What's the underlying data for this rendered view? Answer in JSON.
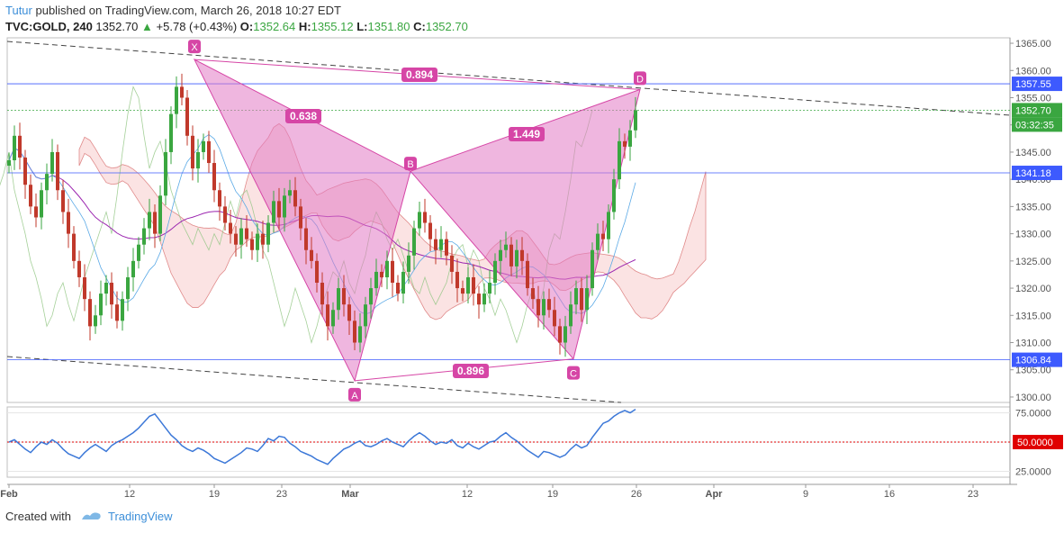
{
  "header": {
    "author": "Tutur",
    "published_text": "published on TradingView.com, March 26, 2018 10:27 EDT",
    "symbol": "TVC:GOLD, 240",
    "last": "1352.70",
    "change_arrow": "▲",
    "change": "+5.78 (+0.43%)",
    "o_label": "O:",
    "o_value": "1352.64",
    "h_label": "H:",
    "h_value": "1355.12",
    "l_label": "L:",
    "l_value": "1351.80",
    "c_label": "C:",
    "c_value": "1352.70"
  },
  "footer": {
    "created_with": "Created with",
    "brand": "TradingView"
  },
  "colors": {
    "up": "#3aa640",
    "down": "#c0392b",
    "pattern": "#d646a6",
    "pattern_fill": "#e27ac4",
    "hline": "#3d5afe",
    "rsi_line": "#3c78d8",
    "rsi_mid": "#e00000",
    "cloud_green": "#cfe8c5",
    "cloud_red": "#f7cccc",
    "last_price": "#3aa640"
  },
  "chart_data": [
    {
      "type": "candlestick",
      "title": "TVC:GOLD, 240",
      "ylim": [
        1299,
        1366
      ],
      "y_ticks": [
        1300,
        1305,
        1310,
        1315,
        1320,
        1325,
        1330,
        1335,
        1340,
        1345,
        1350,
        1355,
        1360,
        1365
      ],
      "x_tick_labels": [
        "Feb",
        "12",
        "19",
        "23",
        "Mar",
        "12",
        "19",
        "26",
        "Apr",
        "9",
        "16",
        "23"
      ],
      "price_tags": [
        {
          "label": "1357.55",
          "value": 1357.55
        },
        {
          "label": "1352.70",
          "value": 1352.7
        },
        {
          "label": "03:32:35",
          "value": 1350.3
        },
        {
          "label": "1341.18",
          "value": 1341.18
        },
        {
          "label": "1306.84",
          "value": 1306.84
        }
      ],
      "harmonic_pattern": {
        "points": [
          {
            "label": "X",
            "date": "Feb 16",
            "price": 1362.0
          },
          {
            "label": "A",
            "date": "Mar 01",
            "price": 1303.0
          },
          {
            "label": "B",
            "date": "Mar 08",
            "price": 1341.5
          },
          {
            "label": "C",
            "date": "Mar 20",
            "price": 1307.0
          },
          {
            "label": "D",
            "date": "Mar 26",
            "price": 1356.5
          }
        ],
        "ratios": [
          {
            "label": "0.638",
            "leg": "XA-B"
          },
          {
            "label": "0.896",
            "leg": "AB-C"
          },
          {
            "label": "1.449",
            "leg": "BC-D"
          },
          {
            "label": "0.894",
            "leg": "XA-D"
          }
        ]
      },
      "trendlines": [
        {
          "name": "upper",
          "style": "dashed"
        },
        {
          "name": "lower",
          "style": "dashed"
        }
      ],
      "series": [
        {
          "name": "close",
          "kind": "candles",
          "values": [
            1343.5,
            1348,
            1344,
            1339,
            1335,
            1333,
            1338,
            1341,
            1345,
            1338,
            1334,
            1330,
            1325,
            1322,
            1318,
            1313,
            1315,
            1319,
            1321,
            1317,
            1314,
            1318,
            1322,
            1325,
            1328,
            1331,
            1334,
            1330,
            1337,
            1345,
            1352,
            1357,
            1355,
            1348,
            1342,
            1345,
            1347,
            1343,
            1338,
            1335,
            1332,
            1330,
            1328,
            1331,
            1329,
            1327,
            1330,
            1328,
            1332,
            1336,
            1333,
            1337,
            1338,
            1335,
            1331,
            1327,
            1325,
            1321,
            1317,
            1313,
            1316,
            1320,
            1317,
            1314,
            1310,
            1313,
            1317,
            1320,
            1323,
            1322,
            1325,
            1321,
            1319,
            1323,
            1326,
            1331,
            1334,
            1332,
            1329,
            1327,
            1329,
            1326,
            1323,
            1320,
            1319,
            1322,
            1319,
            1317,
            1319,
            1321,
            1325,
            1327,
            1328,
            1324,
            1327,
            1325,
            1320,
            1318,
            1315,
            1318,
            1316,
            1313,
            1310,
            1313,
            1317,
            1320,
            1316,
            1320,
            1327,
            1330,
            1329,
            1334,
            1340,
            1347,
            1346,
            1349,
            1352.7
          ]
        },
        {
          "name": "RSI",
          "kind": "line",
          "ylim": [
            20,
            80
          ],
          "y_ticks": [
            25,
            50,
            75
          ],
          "mid_label": "50.0000",
          "values": [
            50,
            52,
            48,
            44,
            41,
            46,
            50,
            48,
            52,
            49,
            44,
            40,
            38,
            36,
            41,
            45,
            48,
            45,
            42,
            47,
            50,
            52,
            55,
            58,
            62,
            67,
            72,
            74,
            68,
            62,
            56,
            52,
            47,
            44,
            42,
            45,
            43,
            40,
            36,
            34,
            32,
            35,
            38,
            41,
            45,
            44,
            42,
            47,
            53,
            51,
            55,
            54,
            49,
            46,
            42,
            40,
            38,
            35,
            33,
            31,
            36,
            40,
            44,
            46,
            49,
            51,
            47,
            46,
            48,
            51,
            53,
            50,
            48,
            46,
            51,
            55,
            58,
            55,
            51,
            48,
            50,
            49,
            52,
            47,
            45,
            49,
            46,
            44,
            47,
            50,
            51,
            55,
            58,
            54,
            51,
            47,
            43,
            40,
            37,
            42,
            41,
            39,
            37,
            39,
            44,
            48,
            45,
            47,
            54,
            60,
            66,
            68,
            72,
            75,
            77,
            75,
            78
          ]
        }
      ]
    }
  ]
}
